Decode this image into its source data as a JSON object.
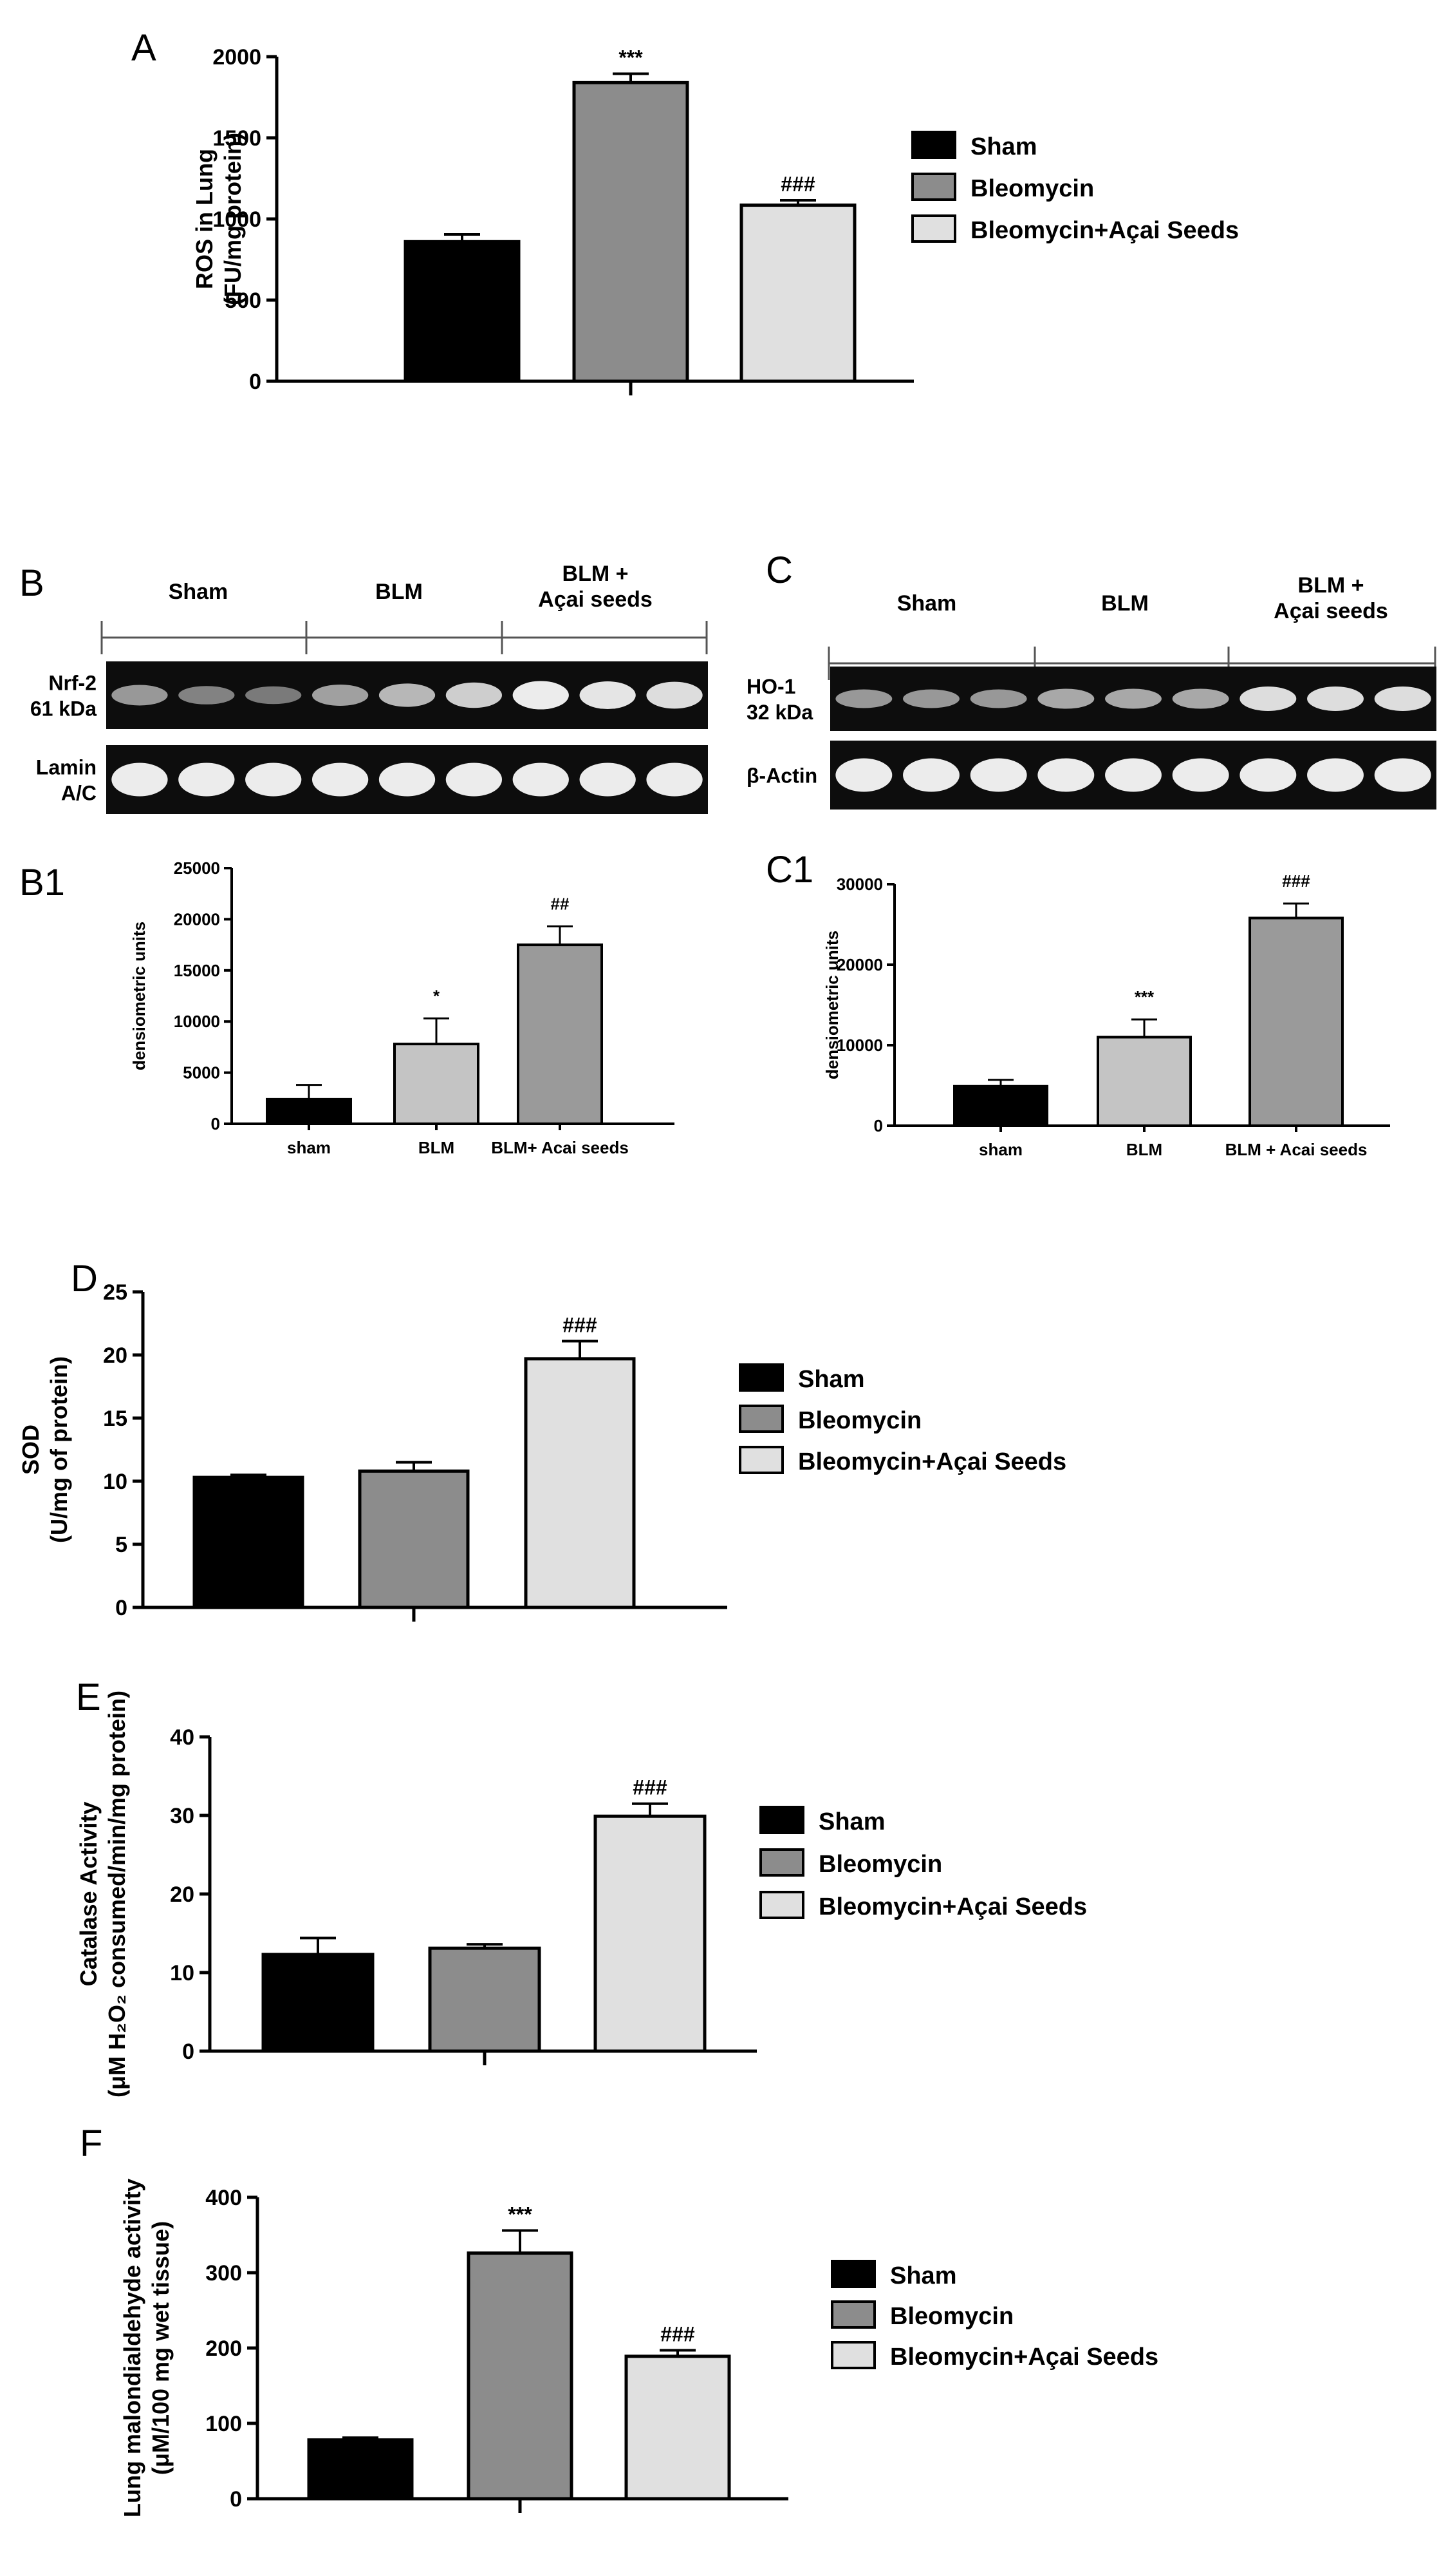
{
  "legend_labels": [
    "Sham",
    "Bleomycin",
    "Bleomycin+Açai Seeds"
  ],
  "colors": {
    "sham": "#000000",
    "blm": "#8c8c8c",
    "acai": "#e0e0e0",
    "axis": "#000000"
  },
  "chart_data": [
    {
      "panel": "A",
      "type": "bar",
      "ylabel": [
        "ROS in Lung",
        "(FU/mg protein)"
      ],
      "ylim": [
        0,
        2000
      ],
      "yticks": [
        0,
        500,
        1000,
        1500,
        2000
      ],
      "series": [
        {
          "name": "Sham",
          "value": 860,
          "error": 45,
          "sig": ""
        },
        {
          "name": "Bleomycin",
          "value": 1840,
          "error": 55,
          "sig": "***"
        },
        {
          "name": "Bleomycin+Açai Seeds",
          "value": 1085,
          "error": 30,
          "sig": "###"
        }
      ]
    },
    {
      "panel": "B1",
      "type": "bar",
      "ylabel": [
        "densiometric units"
      ],
      "ylim": [
        0,
        25000
      ],
      "yticks": [
        0,
        5000,
        10000,
        15000,
        20000,
        25000
      ],
      "categories": [
        "sham",
        "BLM",
        "BLM+ Acai seeds"
      ],
      "values": [
        2400,
        7800,
        17500
      ],
      "errors": [
        1400,
        2500,
        1800
      ],
      "sig": [
        "",
        "*",
        "##"
      ]
    },
    {
      "panel": "C1",
      "type": "bar",
      "ylabel": [
        "densiometric units"
      ],
      "ylim": [
        0,
        30000
      ],
      "yticks": [
        0,
        10000,
        20000,
        30000
      ],
      "categories": [
        "sham",
        "BLM",
        "BLM + Acai seeds"
      ],
      "values": [
        4900,
        11000,
        25800
      ],
      "errors": [
        800,
        2200,
        1800
      ],
      "sig": [
        "",
        "***",
        "###"
      ]
    },
    {
      "panel": "D",
      "type": "bar",
      "ylabel": [
        "SOD",
        "(U/mg of protein)"
      ],
      "ylim": [
        0,
        25
      ],
      "yticks": [
        0,
        5,
        10,
        15,
        20,
        25
      ],
      "series": [
        {
          "name": "Sham",
          "value": 10.3,
          "error": 0.2,
          "sig": ""
        },
        {
          "name": "Bleomycin",
          "value": 10.8,
          "error": 0.7,
          "sig": ""
        },
        {
          "name": "Bleomycin+Açai Seeds",
          "value": 19.7,
          "error": 1.4,
          "sig": "###"
        }
      ]
    },
    {
      "panel": "E",
      "type": "bar",
      "ylabel": [
        "Catalase Activity",
        "(μM H₂O₂ consumed/min/mg protein)"
      ],
      "ylim": [
        0,
        40
      ],
      "yticks": [
        0,
        10,
        20,
        30,
        40
      ],
      "series": [
        {
          "name": "Sham",
          "value": 12.3,
          "error": 2.1,
          "sig": ""
        },
        {
          "name": "Bleomycin",
          "value": 13.1,
          "error": 0.5,
          "sig": ""
        },
        {
          "name": "Bleomycin+Açai Seeds",
          "value": 29.9,
          "error": 1.6,
          "sig": "###"
        }
      ]
    },
    {
      "panel": "F",
      "type": "bar",
      "ylabel": [
        "Lung malondialdehyde activity",
        "(μM/100 mg wet tissue)"
      ],
      "ylim": [
        0,
        400
      ],
      "yticks": [
        0,
        100,
        200,
        300,
        400
      ],
      "series": [
        {
          "name": "Sham",
          "value": 78,
          "error": 3,
          "sig": ""
        },
        {
          "name": "Bleomycin",
          "value": 326,
          "error": 30,
          "sig": "***"
        },
        {
          "name": "Bleomycin+Açai Seeds",
          "value": 189,
          "error": 8,
          "sig": "###"
        }
      ]
    }
  ],
  "blots": [
    {
      "panel": "B",
      "groups": [
        "Sham",
        "BLM",
        "BLM +\nAçai seeds"
      ],
      "rows": [
        {
          "label": "Nrf-2\n61 kDa",
          "intensities": [
            0.45,
            0.3,
            0.25,
            0.5,
            0.65,
            0.8,
            1.0,
            0.95,
            0.9
          ]
        },
        {
          "label": "Lamin\nA/C",
          "intensities": [
            1,
            1,
            1,
            1,
            1,
            1,
            1,
            1,
            1
          ]
        }
      ]
    },
    {
      "panel": "C",
      "groups": [
        "Sham",
        "BLM",
        "BLM +\nAçai seeds"
      ],
      "rows": [
        {
          "label": "HO-1\n32 kDa",
          "intensities": [
            0.45,
            0.45,
            0.45,
            0.55,
            0.55,
            0.55,
            0.9,
            0.9,
            0.9
          ]
        },
        {
          "label": "β-Actin",
          "intensities": [
            1,
            1,
            1,
            1,
            1,
            1,
            1,
            1,
            1
          ]
        }
      ]
    }
  ]
}
